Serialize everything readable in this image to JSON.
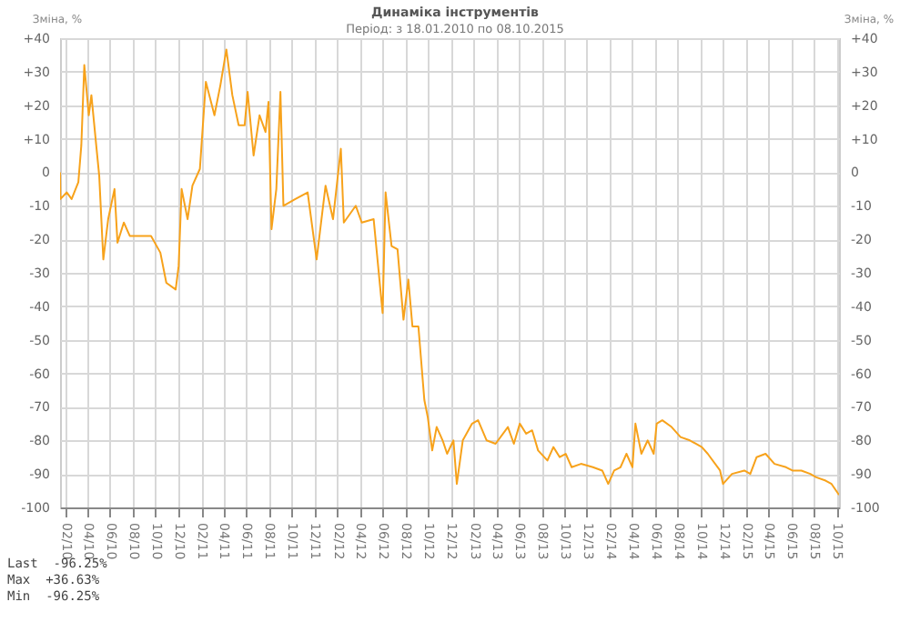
{
  "chart_data": {
    "type": "line",
    "title": "Динаміка інструментів",
    "subtitle": "Період: з 18.01.2010 по 08.10.2015",
    "ylabel": "Зміна, %",
    "y2label": "Зміна, %",
    "x": [
      "2010-01-18",
      "2010-01-19",
      "2010-02-05",
      "2010-02-18",
      "2010-03-08",
      "2010-03-16",
      "2010-03-24",
      "2010-04-05",
      "2010-04-12",
      "2010-04-25",
      "2010-05-03",
      "2010-05-14",
      "2010-05-27",
      "2010-06-13",
      "2010-06-21",
      "2010-07-08",
      "2010-07-24",
      "2010-08-26",
      "2010-09-19",
      "2010-10-14",
      "2010-10-30",
      "2010-11-24",
      "2010-12-02",
      "2010-12-10",
      "2010-12-26",
      "2011-01-08",
      "2011-01-28",
      "2011-02-13",
      "2011-03-08",
      "2011-03-24",
      "2011-04-09",
      "2011-04-25",
      "2011-05-12",
      "2011-05-28",
      "2011-06-05",
      "2011-06-21",
      "2011-07-07",
      "2011-07-23",
      "2011-07-31",
      "2011-08-08",
      "2011-08-21",
      "2011-09-01",
      "2011-09-09",
      "2011-10-11",
      "2011-11-13",
      "2011-12-07",
      "2011-12-31",
      "2012-01-20",
      "2012-02-10",
      "2012-02-18",
      "2012-03-21",
      "2012-04-06",
      "2012-05-08",
      "2012-06-01",
      "2012-06-09",
      "2012-06-25",
      "2012-07-11",
      "2012-07-27",
      "2012-08-09",
      "2012-08-20",
      "2012-09-05",
      "2012-09-21",
      "2012-09-30",
      "2012-10-12",
      "2012-10-24",
      "2012-11-09",
      "2012-11-21",
      "2012-12-08",
      "2012-12-17",
      "2013-01-02",
      "2013-01-27",
      "2013-02-12",
      "2013-03-07",
      "2013-03-31",
      "2013-05-03",
      "2013-05-19",
      "2013-06-04",
      "2013-06-21",
      "2013-07-07",
      "2013-07-23",
      "2013-08-17",
      "2013-09-02",
      "2013-09-19",
      "2013-10-05",
      "2013-10-21",
      "2013-11-15",
      "2013-12-17",
      "2014-01-11",
      "2014-01-27",
      "2014-02-12",
      "2014-03-01",
      "2014-03-17",
      "2014-04-02",
      "2014-04-10",
      "2014-04-26",
      "2014-05-13",
      "2014-05-29",
      "2014-06-06",
      "2014-06-21",
      "2014-07-16",
      "2014-08-09",
      "2014-09-03",
      "2014-09-19",
      "2014-10-05",
      "2014-10-21",
      "2014-11-23",
      "2014-12-01",
      "2014-12-25",
      "2015-01-27",
      "2015-02-12",
      "2015-03-01",
      "2015-03-25",
      "2015-04-18",
      "2015-05-19",
      "2015-06-05",
      "2015-06-29",
      "2015-07-23",
      "2015-08-08",
      "2015-09-02",
      "2015-09-18",
      "2015-10-08"
    ],
    "series": [
      {
        "color": "#f7a21b",
        "values": [
          0,
          -8,
          -6,
          -8,
          -3,
          8,
          32,
          17,
          23,
          8,
          -1,
          -26,
          -14,
          -5,
          -21,
          -15,
          -19,
          -19,
          -19,
          -24,
          -33,
          -35,
          -28,
          -5,
          -14,
          -4,
          1,
          27,
          17,
          26,
          36.63,
          23,
          14,
          14,
          24,
          5,
          17,
          12,
          21,
          -17,
          -5,
          24,
          -10,
          -8,
          -6,
          -26,
          -4,
          -14,
          7,
          -15,
          -10,
          -15,
          -14,
          -42,
          -6,
          -22,
          -23,
          -44,
          -32,
          -46,
          -46,
          -68,
          -73,
          -83,
          -76,
          -80,
          -84,
          -80,
          -93,
          -80,
          -75,
          -74,
          -80,
          -81,
          -76,
          -81,
          -75,
          -78,
          -77,
          -83,
          -86,
          -82,
          -85,
          -84,
          -88,
          -87,
          -88,
          -89,
          -93,
          -89,
          -88,
          -84,
          -88,
          -75,
          -84,
          -80,
          -84,
          -75,
          -74,
          -76,
          -79,
          -80,
          -81,
          -82,
          -84,
          -89,
          -93,
          -90,
          -89,
          -90,
          -85,
          -84,
          -87,
          -88,
          -89,
          -89,
          -90,
          -91,
          -92,
          -93,
          -96.25
        ]
      }
    ],
    "xlim": [
      "2010-01-18",
      "2015-10-08"
    ],
    "xticks": [
      {
        "value": "2010-02",
        "label": "02/10"
      },
      {
        "value": "2010-04",
        "label": "04/10"
      },
      {
        "value": "2010-06",
        "label": "06/10"
      },
      {
        "value": "2010-08",
        "label": "08/10"
      },
      {
        "value": "2010-10",
        "label": "10/10"
      },
      {
        "value": "2010-12",
        "label": "12/10"
      },
      {
        "value": "2011-02",
        "label": "02/11"
      },
      {
        "value": "2011-04",
        "label": "04/11"
      },
      {
        "value": "2011-06",
        "label": "06/11"
      },
      {
        "value": "2011-08",
        "label": "08/11"
      },
      {
        "value": "2011-10",
        "label": "10/11"
      },
      {
        "value": "2011-12",
        "label": "12/11"
      },
      {
        "value": "2012-02",
        "label": "02/12"
      },
      {
        "value": "2012-04",
        "label": "04/12"
      },
      {
        "value": "2012-06",
        "label": "06/12"
      },
      {
        "value": "2012-08",
        "label": "08/12"
      },
      {
        "value": "2012-10",
        "label": "10/12"
      },
      {
        "value": "2012-12",
        "label": "12/12"
      },
      {
        "value": "2013-02",
        "label": "02/13"
      },
      {
        "value": "2013-04",
        "label": "04/13"
      },
      {
        "value": "2013-06",
        "label": "06/13"
      },
      {
        "value": "2013-08",
        "label": "08/13"
      },
      {
        "value": "2013-10",
        "label": "10/13"
      },
      {
        "value": "2013-12",
        "label": "12/13"
      },
      {
        "value": "2014-02",
        "label": "02/14"
      },
      {
        "value": "2014-04",
        "label": "04/14"
      },
      {
        "value": "2014-06",
        "label": "06/14"
      },
      {
        "value": "2014-08",
        "label": "08/14"
      },
      {
        "value": "2014-10",
        "label": "10/14"
      },
      {
        "value": "2014-12",
        "label": "12/14"
      },
      {
        "value": "2015-02",
        "label": "02/15"
      },
      {
        "value": "2015-04",
        "label": "04/15"
      },
      {
        "value": "2015-06",
        "label": "06/15"
      },
      {
        "value": "2015-08",
        "label": "08/15"
      },
      {
        "value": "2015-10",
        "label": "10/15"
      }
    ],
    "ylim": [
      -100,
      40
    ],
    "yticks": [
      -100,
      -90,
      -80,
      -70,
      -60,
      -50,
      -40,
      -30,
      -20,
      -10,
      0,
      {
        "value": 10,
        "label": "+10"
      },
      {
        "value": 20,
        "label": "+20"
      },
      {
        "value": 30,
        "label": "+30"
      },
      {
        "value": 40,
        "label": "+40"
      }
    ],
    "y2lim": [
      -100,
      40
    ],
    "y2ticks": [
      -100,
      -90,
      -80,
      -70,
      -60,
      -50,
      -40,
      -30,
      -20,
      -10,
      0,
      {
        "value": 10,
        "label": "+10"
      },
      {
        "value": 20,
        "label": "+20"
      },
      {
        "value": 30,
        "label": "+30"
      },
      {
        "value": 40,
        "label": "+40"
      }
    ],
    "grid": true,
    "annotations": [
      "Last  -96.25%",
      "Max  +36.63%",
      "Min  -96.25%"
    ]
  }
}
